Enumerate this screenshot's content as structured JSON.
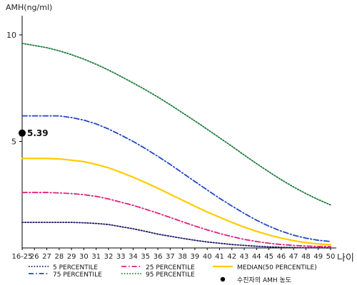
{
  "chart_data": {
    "type": "line",
    "ylabel": "AMH(ng/ml)",
    "xlabel": "나이",
    "ylim": [
      0,
      10.9
    ],
    "yticks": [
      5,
      10
    ],
    "categories": [
      "16-25",
      "26",
      "27",
      "28",
      "29",
      "30",
      "31",
      "32",
      "33",
      "34",
      "35",
      "36",
      "37",
      "38",
      "39",
      "40",
      "41",
      "42",
      "43",
      "44",
      "45",
      "46",
      "47",
      "48",
      "49",
      "50"
    ],
    "series": [
      {
        "name": "5 PERCENTILE",
        "color": "#1a1a66",
        "dash": "dotted",
        "values": [
          1.2,
          1.2,
          1.2,
          1.2,
          1.2,
          1.18,
          1.15,
          1.1,
          1.0,
          0.9,
          0.78,
          0.65,
          0.55,
          0.45,
          0.36,
          0.28,
          0.22,
          0.16,
          0.12,
          0.08,
          0.05,
          0.03,
          0.02,
          0.01,
          0.01,
          0.0
        ]
      },
      {
        "name": "25 PERCENTILE",
        "color": "#e0207a",
        "dash": "dashdot",
        "values": [
          2.6,
          2.6,
          2.6,
          2.58,
          2.55,
          2.5,
          2.42,
          2.3,
          2.15,
          2.0,
          1.82,
          1.63,
          1.43,
          1.23,
          1.03,
          0.85,
          0.68,
          0.53,
          0.4,
          0.3,
          0.22,
          0.16,
          0.12,
          0.09,
          0.07,
          0.06
        ]
      },
      {
        "name": "MEDIAN(50 PERCENTILE)",
        "color": "#ffcc00",
        "dash": "solid",
        "values": [
          4.2,
          4.2,
          4.2,
          4.18,
          4.12,
          4.05,
          3.92,
          3.76,
          3.55,
          3.32,
          3.07,
          2.8,
          2.52,
          2.24,
          1.96,
          1.69,
          1.44,
          1.2,
          0.98,
          0.78,
          0.61,
          0.46,
          0.34,
          0.25,
          0.19,
          0.15
        ]
      },
      {
        "name": "75 PERCENTILE",
        "color": "#2244cc",
        "dash": "dashdot",
        "values": [
          6.2,
          6.2,
          6.2,
          6.2,
          6.12,
          6.0,
          5.82,
          5.58,
          5.3,
          5.0,
          4.66,
          4.3,
          3.92,
          3.52,
          3.12,
          2.72,
          2.33,
          1.97,
          1.62,
          1.3,
          1.02,
          0.79,
          0.6,
          0.46,
          0.36,
          0.3
        ]
      },
      {
        "name": "95 PERCENTILE",
        "color": "#1f7a3a",
        "dash": "dotted",
        "values": [
          9.6,
          9.5,
          9.4,
          9.25,
          9.07,
          8.86,
          8.62,
          8.35,
          8.05,
          7.74,
          7.42,
          7.08,
          6.72,
          6.34,
          5.96,
          5.57,
          5.17,
          4.77,
          4.36,
          3.96,
          3.57,
          3.2,
          2.86,
          2.55,
          2.27,
          2.02
        ]
      }
    ],
    "marker": {
      "name": "수진자의 AMH 농도",
      "category": "16-25",
      "value": 5.39,
      "label": "5.39",
      "color": "#000000"
    },
    "legend_placement": "bottom",
    "grid": false
  }
}
